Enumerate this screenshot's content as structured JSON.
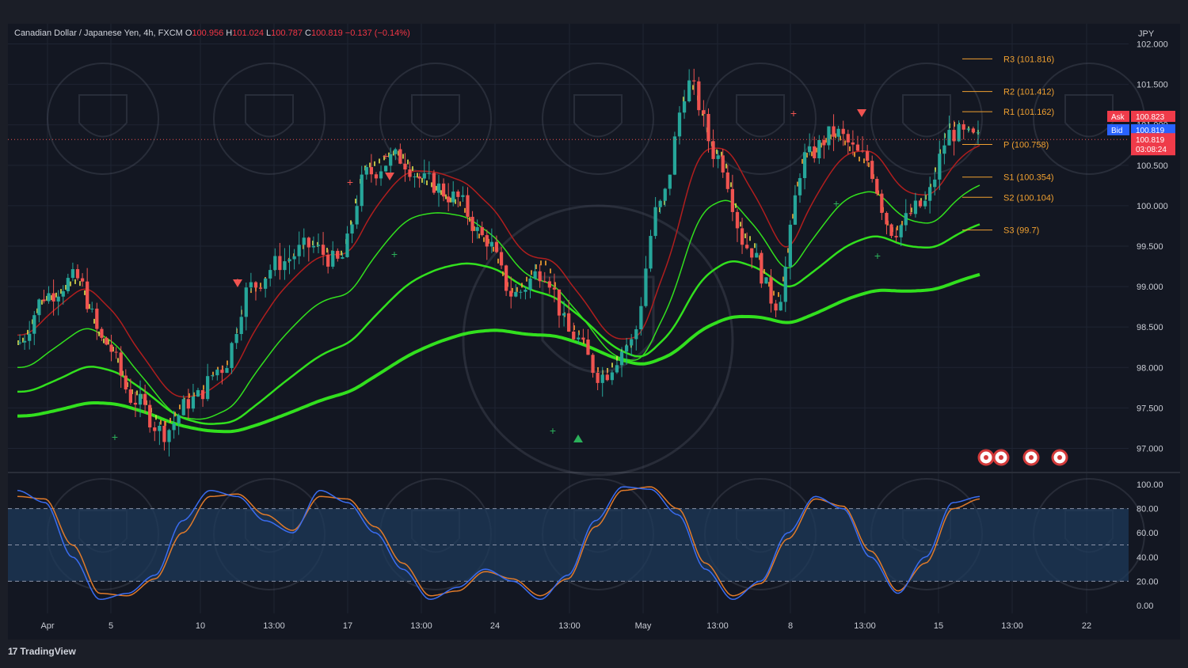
{
  "legend": {
    "symbol": "Canadian Dollar / Japanese Yen, 4h, FXCM",
    "o_label": "O",
    "o_value": "100.956",
    "h_label": "H",
    "h_value": "101.024",
    "l_label": "L",
    "l_value": "100.787",
    "c_label": "C",
    "c_value": "100.819",
    "change": "−0.137 (−0.14%)"
  },
  "currency": "JPY",
  "footer": {
    "logo_mark": "17",
    "logo_text": "TradingView"
  },
  "colors": {
    "background": "#131722",
    "bull": "#26a69a",
    "bear": "#ef5350",
    "pivot": "#f0a030",
    "ema_green": "#32e01e",
    "ema_red": "#b01e1e",
    "stoch_k": "#3a6cf0",
    "stoch_d": "#e07a2a",
    "band": "#1e3a5a"
  },
  "price_panel": {
    "y_ticks": [
      "102.000",
      "101.500",
      "101.000",
      "100.500",
      "100.000",
      "99.500",
      "99.000",
      "98.500",
      "98.000",
      "97.500",
      "97.000"
    ],
    "x_ticks": [
      "Apr",
      "5",
      "10",
      "13:00",
      "17",
      "13:00",
      "24",
      "13:00",
      "May",
      "13:00",
      "8",
      "13:00",
      "15",
      "13:00",
      "22"
    ],
    "ask_label": "Ask",
    "ask_value": "100.823",
    "bid_label": "Bid",
    "bid_value": "100.819",
    "last_price": "100.819",
    "countdown": "03:08:24",
    "pivots": [
      {
        "label": "R3 (101.816)",
        "value": 101.816
      },
      {
        "label": "R2 (101.412)",
        "value": 101.412
      },
      {
        "label": "R1 (101.162)",
        "value": 101.162
      },
      {
        "label": "P (100.758)",
        "value": 100.758
      },
      {
        "label": "S1 (100.354)",
        "value": 100.354
      },
      {
        "label": "S2 (100.104)",
        "value": 100.104
      },
      {
        "label": "S3 (99.7)",
        "value": 99.7
      }
    ]
  },
  "stoch_panel": {
    "y_ticks": [
      "100.00",
      "80.00",
      "60.00",
      "40.00",
      "20.00",
      "0.00"
    ],
    "upper_band": 80,
    "lower_band": 20,
    "mid_line": 50
  },
  "chart_data": [
    {
      "type": "candlestick",
      "title": "Canadian Dollar / Japanese Yen, 4h, FXCM",
      "ylim": [
        96.75,
        102.25
      ],
      "close_points": [
        {
          "date": "Apr 1",
          "close": 98.3
        },
        {
          "date": "Apr 2",
          "close": 98.9
        },
        {
          "date": "Apr 3",
          "close": 99.1
        },
        {
          "date": "Apr 4",
          "close": 98.3
        },
        {
          "date": "Apr 5",
          "close": 97.6
        },
        {
          "date": "Apr 6",
          "close": 97.2
        },
        {
          "date": "Apr 7",
          "close": 97.6
        },
        {
          "date": "Apr 10",
          "close": 98.0
        },
        {
          "date": "Apr 11",
          "close": 99.0
        },
        {
          "date": "Apr 12",
          "close": 99.3
        },
        {
          "date": "Apr 13",
          "close": 99.5
        },
        {
          "date": "Apr 14",
          "close": 99.3
        },
        {
          "date": "Apr 17",
          "close": 100.4
        },
        {
          "date": "Apr 18",
          "close": 100.6
        },
        {
          "date": "Apr 19",
          "close": 100.3
        },
        {
          "date": "Apr 20",
          "close": 100.1
        },
        {
          "date": "Apr 21",
          "close": 99.6
        },
        {
          "date": "Apr 24",
          "close": 98.9
        },
        {
          "date": "Apr 25",
          "close": 99.2
        },
        {
          "date": "Apr 26",
          "close": 98.4
        },
        {
          "date": "Apr 27",
          "close": 97.9
        },
        {
          "date": "Apr 28",
          "close": 98.3
        },
        {
          "date": "May 1",
          "close": 100.0
        },
        {
          "date": "May 2",
          "close": 101.5
        },
        {
          "date": "May 3",
          "close": 100.6
        },
        {
          "date": "May 4",
          "close": 99.5
        },
        {
          "date": "May 5",
          "close": 98.8
        },
        {
          "date": "May 8",
          "close": 100.6
        },
        {
          "date": "May 9",
          "close": 100.9
        },
        {
          "date": "May 10",
          "close": 100.6
        },
        {
          "date": "May 11",
          "close": 99.7
        },
        {
          "date": "May 12",
          "close": 100.0
        },
        {
          "date": "May 15",
          "close": 100.9
        },
        {
          "date": "May 16",
          "close": 100.819
        }
      ]
    },
    {
      "type": "line",
      "title": "",
      "ylim": [
        0,
        100
      ],
      "series": [
        {
          "values": [
            95,
            85,
            40,
            5,
            10,
            25,
            70,
            95,
            90,
            70,
            60,
            95,
            85,
            60,
            30,
            5,
            15,
            30,
            20,
            5,
            25,
            70,
            98,
            96,
            75,
            30,
            5,
            20,
            60,
            90,
            80,
            40,
            10,
            40,
            85,
            90
          ]
        },
        {
          "values": [
            90,
            88,
            50,
            10,
            8,
            22,
            60,
            90,
            92,
            75,
            62,
            90,
            88,
            65,
            35,
            8,
            12,
            28,
            22,
            8,
            22,
            65,
            95,
            98,
            80,
            35,
            8,
            18,
            55,
            88,
            82,
            45,
            12,
            35,
            80,
            88
          ]
        }
      ]
    }
  ]
}
